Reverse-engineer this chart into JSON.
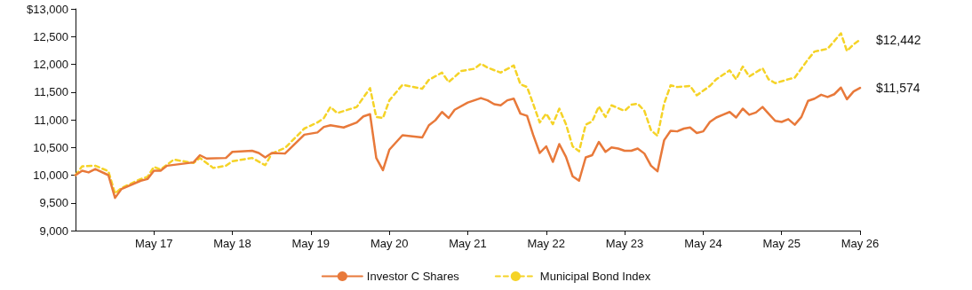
{
  "chart_data": {
    "type": "line",
    "marker": "none",
    "legend": "bottom",
    "grid": false,
    "xlim": [
      "2016-05",
      "2026-05"
    ],
    "xticks": [
      {
        "value": "2017-05",
        "label": "May 17"
      },
      {
        "value": "2018-05",
        "label": "May 18"
      },
      {
        "value": "2019-05",
        "label": "May 19"
      },
      {
        "value": "2020-05",
        "label": "May 20"
      },
      {
        "value": "2021-05",
        "label": "May 21"
      },
      {
        "value": "2022-05",
        "label": "May 22"
      },
      {
        "value": "2023-05",
        "label": "May 23"
      },
      {
        "value": "2024-05",
        "label": "May 24"
      },
      {
        "value": "2025-05",
        "label": "May 25"
      },
      {
        "value": "2026-05",
        "label": "May 26"
      }
    ],
    "ylim": [
      9000,
      13000
    ],
    "yticks": [
      {
        "value": 9000,
        "label": "9,000"
      },
      {
        "value": 9500,
        "label": "9,500"
      },
      {
        "value": 10000,
        "label": "10,000"
      },
      {
        "value": 10500,
        "label": "10,500"
      },
      {
        "value": 11000,
        "label": "11,000"
      },
      {
        "value": 11500,
        "label": "11,500"
      },
      {
        "value": 12000,
        "label": "12,000"
      },
      {
        "value": 12500,
        "label": "12,500"
      },
      {
        "value": 13000,
        "label": "$13,000"
      }
    ],
    "annotations": [
      {
        "text": "$12,442",
        "x": "2026-05",
        "y": 12442
      },
      {
        "text": "$11,574",
        "x": "2026-05",
        "y": 11574
      }
    ],
    "series": [
      {
        "name": "Investor C Shares",
        "color": "#e8793a",
        "line_style": "solid",
        "x": [
          "2016-05",
          "2016-06",
          "2016-07",
          "2016-08",
          "2016-10",
          "2016-11",
          "2016-12",
          "2017-03",
          "2017-04",
          "2017-05",
          "2017-06",
          "2017-07",
          "2017-11",
          "2017-12",
          "2018-01",
          "2018-04",
          "2018-05",
          "2018-08",
          "2018-09",
          "2018-10",
          "2018-11",
          "2019-01",
          "2019-04",
          "2019-06",
          "2019-07",
          "2019-08",
          "2019-10",
          "2019-12",
          "2020-01",
          "2020-02",
          "2020-03",
          "2020-04",
          "2020-05",
          "2020-07",
          "2020-10",
          "2020-11",
          "2020-12",
          "2021-01",
          "2021-02",
          "2021-03",
          "2021-05",
          "2021-07",
          "2021-08",
          "2021-09",
          "2021-10",
          "2021-11",
          "2021-12",
          "2022-01",
          "2022-02",
          "2022-03",
          "2022-04",
          "2022-05",
          "2022-06",
          "2022-07",
          "2022-08",
          "2022-09",
          "2022-10",
          "2022-11",
          "2022-12",
          "2023-01",
          "2023-02",
          "2023-03",
          "2023-04",
          "2023-05",
          "2023-06",
          "2023-07",
          "2023-08",
          "2023-09",
          "2023-10",
          "2023-11",
          "2023-12",
          "2024-01",
          "2024-02",
          "2024-03",
          "2024-04",
          "2024-05",
          "2024-06",
          "2024-07",
          "2024-08",
          "2024-09",
          "2024-10",
          "2024-11",
          "2024-12",
          "2025-01",
          "2025-02",
          "2025-03",
          "2025-04",
          "2025-05",
          "2025-06",
          "2025-07",
          "2025-08",
          "2025-09",
          "2025-10",
          "2025-11",
          "2025-12",
          "2026-01",
          "2026-02",
          "2026-03",
          "2026-04",
          "2026-05"
        ],
        "values": [
          10000,
          10080,
          10050,
          10110,
          10000,
          9590,
          9750,
          9900,
          9930,
          10080,
          10080,
          10170,
          10230,
          10360,
          10300,
          10310,
          10420,
          10440,
          10400,
          10320,
          10400,
          10390,
          10730,
          10770,
          10870,
          10900,
          10860,
          10950,
          11060,
          11100,
          10310,
          10090,
          10460,
          10720,
          10680,
          10900,
          10990,
          11140,
          11030,
          11180,
          11310,
          11390,
          11350,
          11280,
          11260,
          11350,
          11380,
          11110,
          11070,
          10730,
          10400,
          10520,
          10240,
          10560,
          10330,
          9980,
          9900,
          10320,
          10360,
          10600,
          10420,
          10500,
          10480,
          10440,
          10440,
          10480,
          10390,
          10170,
          10070,
          10630,
          10800,
          10790,
          10840,
          10860,
          10760,
          10790,
          10960,
          11040,
          11090,
          11140,
          11040,
          11200,
          11090,
          11130,
          11230,
          11110,
          10980,
          10960,
          11010,
          10910,
          11050,
          11340,
          11380,
          11450,
          11410,
          11460,
          11580,
          11370,
          11510,
          11574
        ]
      },
      {
        "name": "Municipal Bond Index",
        "color": "#f5d327",
        "line_style": "dashed",
        "x": [
          "2016-05",
          "2016-06",
          "2016-08",
          "2016-09",
          "2016-10",
          "2016-11",
          "2016-12",
          "2017-03",
          "2017-04",
          "2017-05",
          "2017-06",
          "2017-08",
          "2017-11",
          "2017-12",
          "2018-02",
          "2018-04",
          "2018-05",
          "2018-08",
          "2018-10",
          "2018-11",
          "2019-01",
          "2019-04",
          "2019-06",
          "2019-07",
          "2019-08",
          "2019-09",
          "2019-12",
          "2020-01",
          "2020-02",
          "2020-03",
          "2020-04",
          "2020-05",
          "2020-07",
          "2020-10",
          "2020-11",
          "2021-01",
          "2021-02",
          "2021-04",
          "2021-06",
          "2021-07",
          "2021-08",
          "2021-10",
          "2021-12",
          "2022-01",
          "2022-02",
          "2022-03",
          "2022-04",
          "2022-05",
          "2022-06",
          "2022-07",
          "2022-08",
          "2022-09",
          "2022-10",
          "2022-11",
          "2022-12",
          "2023-01",
          "2023-02",
          "2023-03",
          "2023-05",
          "2023-06",
          "2023-07",
          "2023-08",
          "2023-09",
          "2023-10",
          "2023-11",
          "2023-12",
          "2024-01",
          "2024-03",
          "2024-04",
          "2024-06",
          "2024-07",
          "2024-09",
          "2024-10",
          "2024-11",
          "2024-12",
          "2025-02",
          "2025-03",
          "2025-04",
          "2025-06",
          "2025-07",
          "2025-09",
          "2025-10",
          "2025-12",
          "2026-02",
          "2026-03",
          "2026-04",
          "2026-05"
        ],
        "values": [
          10000,
          10160,
          10170,
          10120,
          10070,
          9670,
          9770,
          9930,
          9970,
          10150,
          10100,
          10280,
          10220,
          10310,
          10130,
          10170,
          10250,
          10310,
          10180,
          10390,
          10490,
          10840,
          10950,
          11030,
          11230,
          11120,
          11230,
          11400,
          11570,
          11050,
          11030,
          11350,
          11630,
          11560,
          11720,
          11850,
          11680,
          11880,
          11920,
          12010,
          11940,
          11850,
          11980,
          11640,
          11590,
          11290,
          10950,
          11110,
          10920,
          11200,
          10920,
          10520,
          10430,
          10910,
          10970,
          11240,
          11050,
          11260,
          11160,
          11270,
          11290,
          11160,
          10810,
          10710,
          11290,
          11620,
          11590,
          11610,
          11440,
          11610,
          11730,
          11890,
          11730,
          11960,
          11780,
          11930,
          11730,
          11660,
          11730,
          11760,
          12090,
          12230,
          12280,
          12560,
          12240,
          12360,
          12442
        ]
      }
    ]
  }
}
